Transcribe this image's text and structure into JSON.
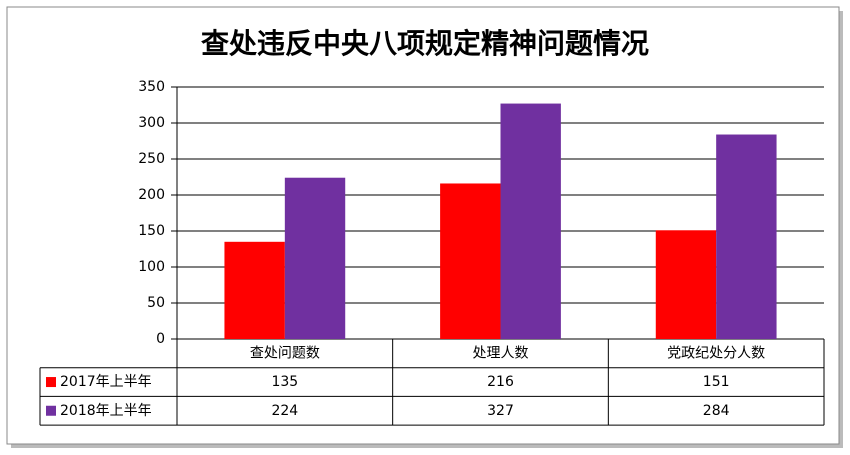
{
  "chart_data": {
    "type": "bar",
    "title": "查处违反中央八项规定精神问题情况",
    "categories": [
      "查处问题数",
      "处理人数",
      "党政纪处分人数"
    ],
    "series": [
      {
        "name": "2017年上半年",
        "color": "#ff0000",
        "values": [
          135,
          216,
          151
        ]
      },
      {
        "name": "2018年上半年",
        "color": "#7030a0",
        "values": [
          224,
          327,
          284
        ]
      }
    ],
    "ylim": [
      0,
      350
    ],
    "yticks": [
      0,
      50,
      100,
      150,
      200,
      250,
      300,
      350
    ],
    "grid": true
  }
}
